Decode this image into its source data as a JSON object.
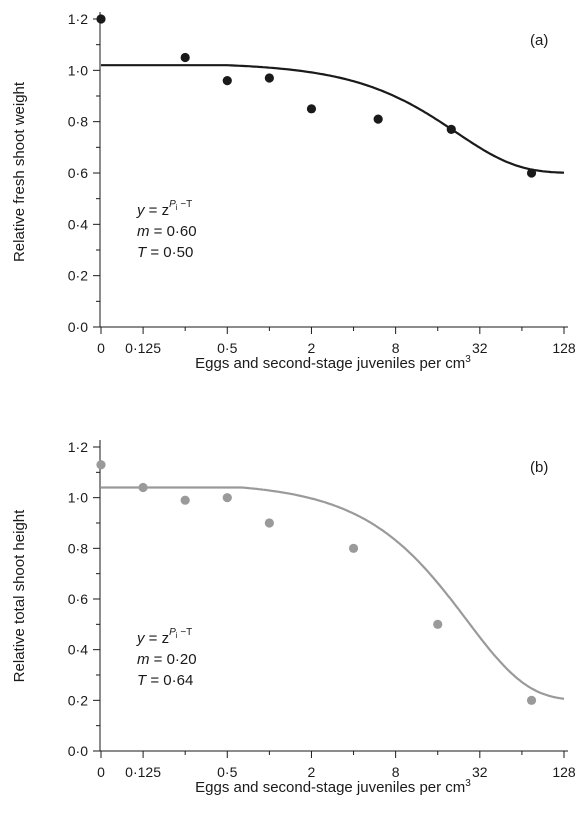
{
  "chart_data": [
    {
      "type": "scatter",
      "panel_label": "(a)",
      "xlabel": "Eggs and second-stage juveniles per cm",
      "xlabel_superscript": "3",
      "ylabel": "Relative fresh shoot weight",
      "x_scale": "log2",
      "x_ticks": [
        0,
        0.125,
        0.5,
        2,
        8,
        32,
        128
      ],
      "x_tick_labels": [
        "0",
        "0·125",
        "0·5",
        "2",
        "8",
        "32",
        "128"
      ],
      "ylim": [
        0,
        1.2
      ],
      "y_ticks": [
        0,
        0.2,
        0.4,
        0.6,
        0.8,
        1.0,
        1.2
      ],
      "y_tick_labels": [
        "0·0",
        "0·2",
        "0·4",
        "0·6",
        "0·8",
        "1·0",
        "1·2"
      ],
      "color": "#1a1a1a",
      "points": [
        {
          "x": 0,
          "y": 1.2
        },
        {
          "x": 0.25,
          "y": 1.05
        },
        {
          "x": 0.5,
          "y": 0.96
        },
        {
          "x": 1,
          "y": 0.97
        },
        {
          "x": 2,
          "y": 0.85
        },
        {
          "x": 6,
          "y": 0.81
        },
        {
          "x": 20,
          "y": 0.77
        },
        {
          "x": 75,
          "y": 0.6
        }
      ],
      "fit": {
        "y_max": 1.02,
        "m": 0.6,
        "T": 0.5
      },
      "annotation": {
        "line1_prefix": "y",
        "line1_eq": " = z",
        "line1_exp_var": "P",
        "line1_exp_sub": "i",
        "line1_exp_tail": " −T",
        "line2_var": "m",
        "line2_val": " = 0·60",
        "line3_var": "T",
        "line3_val": " = 0·50"
      }
    },
    {
      "type": "scatter",
      "panel_label": "(b)",
      "xlabel": "Eggs and second-stage juveniles per cm",
      "xlabel_superscript": "3",
      "ylabel": "Relative total shoot height",
      "x_scale": "log2",
      "x_ticks": [
        0,
        0.125,
        0.5,
        2,
        8,
        32,
        128
      ],
      "x_tick_labels": [
        "0",
        "0·125",
        "0·5",
        "2",
        "8",
        "32",
        "128"
      ],
      "ylim": [
        0,
        1.2
      ],
      "y_ticks": [
        0,
        0.2,
        0.4,
        0.6,
        0.8,
        1.0,
        1.2
      ],
      "y_tick_labels": [
        "0·0",
        "0·2",
        "0·4",
        "0·6",
        "0·8",
        "1·0",
        "1·2"
      ],
      "color": "#9a9a9a",
      "points": [
        {
          "x": 0,
          "y": 1.13
        },
        {
          "x": 0.125,
          "y": 1.04
        },
        {
          "x": 0.25,
          "y": 0.99
        },
        {
          "x": 0.5,
          "y": 1.0
        },
        {
          "x": 1,
          "y": 0.9
        },
        {
          "x": 4,
          "y": 0.8
        },
        {
          "x": 16,
          "y": 0.5
        },
        {
          "x": 75,
          "y": 0.2
        }
      ],
      "fit": {
        "y_max": 1.04,
        "m": 0.2,
        "T": 0.64
      },
      "annotation": {
        "line1_prefix": "y",
        "line1_eq": " = z",
        "line1_exp_var": "P",
        "line1_exp_sub": "i",
        "line1_exp_tail": " −T",
        "line2_var": "m",
        "line2_val": " = 0·20",
        "line3_var": "T",
        "line3_val": " = 0·64"
      }
    }
  ]
}
